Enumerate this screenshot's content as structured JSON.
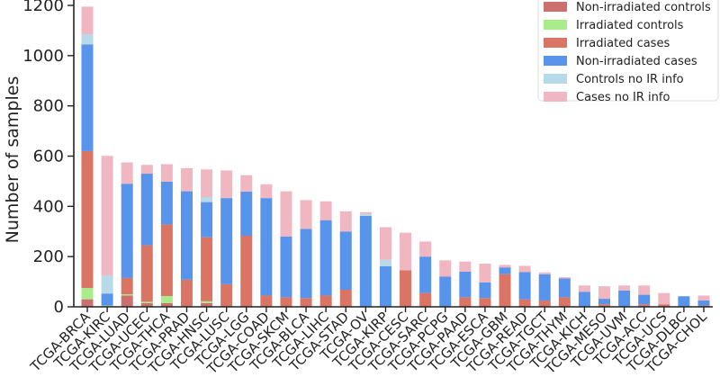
{
  "chart_data": {
    "type": "bar",
    "stacked": true,
    "title": "",
    "xlabel": "",
    "ylabel": "Number of samples",
    "ylim": [
      0,
      1200
    ],
    "yticks": [
      0,
      200,
      400,
      600,
      800,
      1000,
      1200
    ],
    "grid": false,
    "legend_position": "top-right",
    "categories": [
      "TCGA-BRCA",
      "TCGA-KIRC",
      "TCGA-LUAD",
      "TCGA-UCEC",
      "TCGA-THCA",
      "TCGA-PRAD",
      "TCGA-HNSC",
      "TCGA-LUSC",
      "TCGA-LGG",
      "TCGA-COAD",
      "TCGA-SKCM",
      "TCGA-BLCA",
      "TCGA-LIHC",
      "TCGA-STAD",
      "TCGA-OV",
      "TCGA-KIRP",
      "TCGA-CESC",
      "TCGA-SARC",
      "TCGA-PCPG",
      "TCGA-PAAD",
      "TCGA-ESCA",
      "TCGA-GBM",
      "TCGA-READ",
      "TCGA-TGCT",
      "TCGA-THYM",
      "TCGA-KICH",
      "TCGA-MESO",
      "TCGA-UVM",
      "TCGA-ACC",
      "TCGA-UCS",
      "TCGA-DLBC",
      "TCGA-CHOL"
    ],
    "series": [
      {
        "name": "Non-irradiated controls",
        "color": "#cd6f6f",
        "values": [
          30,
          0,
          45,
          15,
          15,
          0,
          15,
          0,
          0,
          0,
          0,
          0,
          0,
          0,
          0,
          0,
          0,
          0,
          0,
          0,
          0,
          0,
          0,
          0,
          0,
          0,
          0,
          0,
          0,
          0,
          0,
          0
        ]
      },
      {
        "name": "Irradiated controls",
        "color": "#a9ec8a",
        "values": [
          45,
          5,
          5,
          5,
          28,
          0,
          7,
          0,
          0,
          0,
          0,
          0,
          0,
          0,
          0,
          0,
          0,
          0,
          0,
          0,
          0,
          0,
          0,
          0,
          0,
          0,
          0,
          0,
          0,
          0,
          0,
          0
        ]
      },
      {
        "name": "Irradiated cases",
        "color": "#da7565",
        "values": [
          545,
          0,
          65,
          225,
          285,
          108,
          255,
          90,
          283,
          45,
          38,
          35,
          45,
          68,
          0,
          0,
          145,
          55,
          0,
          38,
          35,
          130,
          30,
          25,
          38,
          0,
          10,
          0,
          10,
          10,
          0,
          5
        ]
      },
      {
        "name": "Non-irradiated cases",
        "color": "#5893ec",
        "values": [
          425,
          48,
          375,
          285,
          170,
          352,
          140,
          343,
          176,
          388,
          242,
          275,
          300,
          232,
          362,
          162,
          0,
          145,
          120,
          102,
          62,
          27,
          108,
          105,
          75,
          60,
          22,
          65,
          38,
          0,
          42,
          20
        ]
      },
      {
        "name": "Controls no IR info",
        "color": "#b8d9e7",
        "values": [
          40,
          72,
          0,
          0,
          0,
          0,
          20,
          0,
          0,
          0,
          0,
          0,
          0,
          0,
          8,
          25,
          0,
          0,
          0,
          0,
          0,
          0,
          0,
          0,
          0,
          0,
          0,
          0,
          0,
          0,
          0,
          0
        ]
      },
      {
        "name": "Cases no IR info",
        "color": "#f0b6c2",
        "values": [
          110,
          476,
          85,
          35,
          70,
          92,
          110,
          110,
          65,
          55,
          180,
          115,
          75,
          80,
          7,
          130,
          150,
          60,
          65,
          40,
          75,
          10,
          25,
          7,
          5,
          25,
          50,
          20,
          37,
          45,
          0,
          20
        ]
      }
    ]
  }
}
